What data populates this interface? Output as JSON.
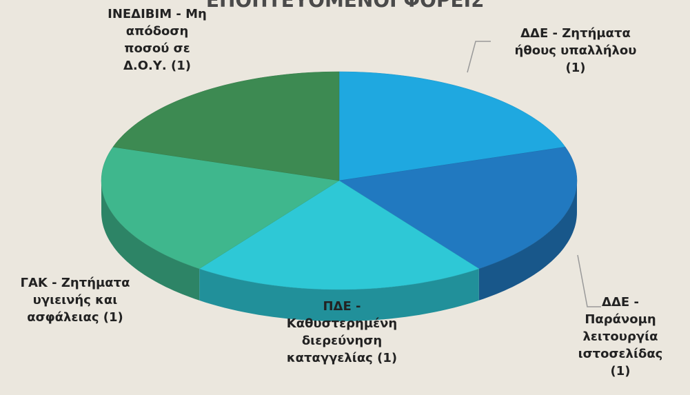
{
  "chart_data": {
    "type": "pie3d",
    "title": "ΕΠΟΠΤΕΥΟΜΕΝΟΙ ΦΟΡΕΙΣ",
    "categories": [
      "ΔΔΕ - Ζητήματα ήθους υπαλλήλου",
      "ΔΔΕ - Παράνομη λειτουργία ιστοσελίδας",
      "ΠΔΕ - Καθυστερημένη διερεύνηση καταγγελίας",
      "ΓΑΚ - Ζητήματα υγιεινής και ασφάλειας ",
      "ΙΝΕΔΙΒΙΜ - Μη απόδοση ποσού σε Δ.Ο.Υ."
    ],
    "values": [
      1,
      1,
      1,
      1,
      1
    ],
    "value_labels": [
      "(1)",
      "(1)",
      "(1)",
      "(1)",
      "(1)"
    ],
    "colors": [
      "#1fa8e0",
      "#2179c0",
      "#2ec8d6",
      "#3fb78d",
      "#3d8a52"
    ]
  }
}
